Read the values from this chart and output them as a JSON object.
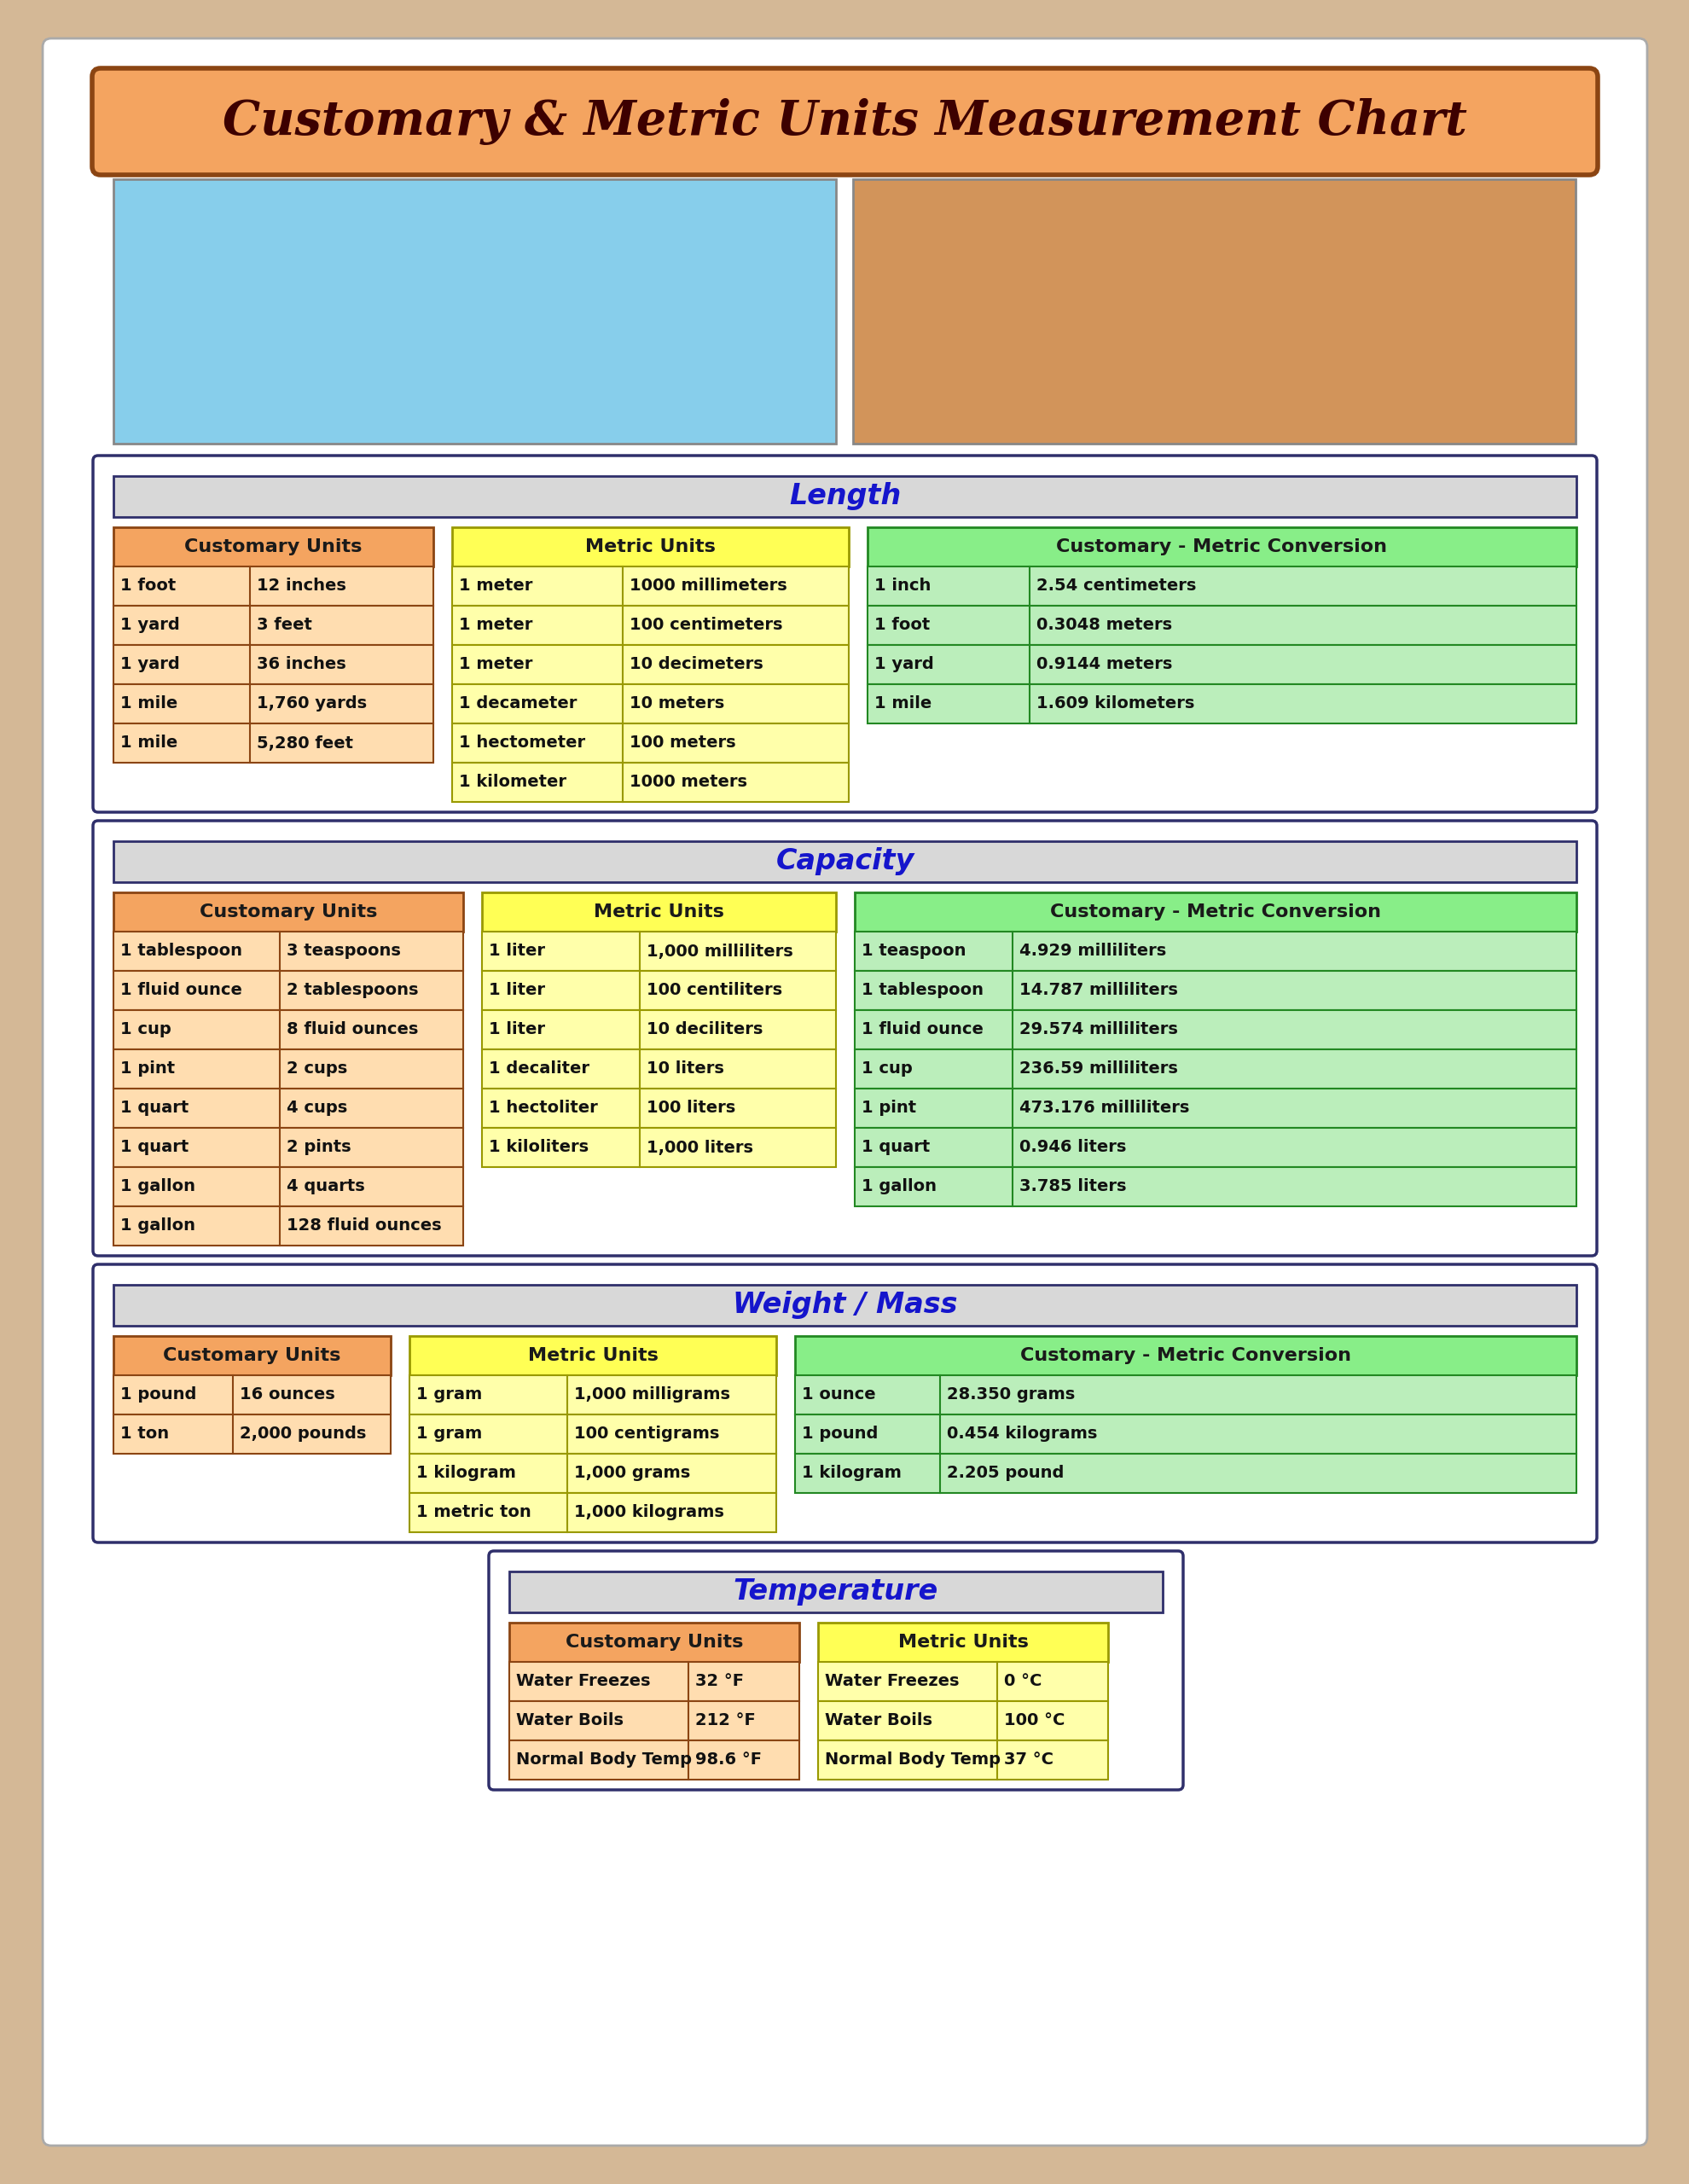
{
  "title": "Customary & Metric Units Measurement Chart",
  "bg_color": "#D4B896",
  "page_bg": "#FFFFFF",
  "title_box_color": "#F4A460",
  "title_border_color": "#8B4513",
  "title_text_color": "#3D0000",
  "section_header_bg": "#D8D8D8",
  "section_header_border": "#2F2F6B",
  "section_text_color": "#1515CC",
  "customary_header_bg": "#F4A460",
  "customary_header_border": "#8B4513",
  "metric_header_bg": "#FFFF55",
  "metric_header_border": "#999900",
  "conversion_header_bg": "#88EE88",
  "conversion_header_border": "#228822",
  "customary_row_bg": "#FFDDB0",
  "metric_row_bg": "#FFFFAA",
  "conversion_row_bg": "#BBEEBB",
  "main_border_color": "#2F2F6B",
  "length_section": "Length",
  "length_customary_header": "Customary Units",
  "length_metric_header": "Metric Units",
  "length_conversion_header": "Customary - Metric Conversion",
  "length_customary": [
    [
      "1 foot",
      "12 inches"
    ],
    [
      "1 yard",
      "3 feet"
    ],
    [
      "1 yard",
      "36 inches"
    ],
    [
      "1 mile",
      "1,760 yards"
    ],
    [
      "1 mile",
      "5,280 feet"
    ]
  ],
  "length_metric": [
    [
      "1 meter",
      "1000 millimeters"
    ],
    [
      "1 meter",
      "100 centimeters"
    ],
    [
      "1 meter",
      "10 decimeters"
    ],
    [
      "1 decameter",
      "10 meters"
    ],
    [
      "1 hectometer",
      "100 meters"
    ],
    [
      "1 kilometer",
      "1000 meters"
    ]
  ],
  "length_conversion": [
    [
      "1 inch",
      "2.54 centimeters"
    ],
    [
      "1 foot",
      "0.3048 meters"
    ],
    [
      "1 yard",
      "0.9144 meters"
    ],
    [
      "1 mile",
      "1.609 kilometers"
    ]
  ],
  "capacity_section": "Capacity",
  "capacity_customary_header": "Customary Units",
  "capacity_metric_header": "Metric Units",
  "capacity_conversion_header": "Customary - Metric Conversion",
  "capacity_customary": [
    [
      "1 tablespoon",
      "3 teaspoons"
    ],
    [
      "1 fluid ounce",
      "2 tablespoons"
    ],
    [
      "1 cup",
      "8 fluid ounces"
    ],
    [
      "1 pint",
      "2 cups"
    ],
    [
      "1 quart",
      "4 cups"
    ],
    [
      "1 quart",
      "2 pints"
    ],
    [
      "1 gallon",
      "4 quarts"
    ],
    [
      "1 gallon",
      "128 fluid ounces"
    ]
  ],
  "capacity_metric": [
    [
      "1 liter",
      "1,000 milliliters"
    ],
    [
      "1 liter",
      "100 centiliters"
    ],
    [
      "1 liter",
      "10 deciliters"
    ],
    [
      "1 decaliter",
      "10 liters"
    ],
    [
      "1 hectoliter",
      "100 liters"
    ],
    [
      "1 kiloliters",
      "1,000 liters"
    ]
  ],
  "capacity_conversion": [
    [
      "1 teaspoon",
      "4.929 milliliters"
    ],
    [
      "1 tablespoon",
      "14.787 milliliters"
    ],
    [
      "1 fluid ounce",
      "29.574 milliliters"
    ],
    [
      "1 cup",
      "236.59 milliliters"
    ],
    [
      "1 pint",
      "473.176 milliliters"
    ],
    [
      "1 quart",
      "0.946 liters"
    ],
    [
      "1 gallon",
      "3.785 liters"
    ]
  ],
  "weight_section": "Weight / Mass",
  "weight_customary_header": "Customary Units",
  "weight_metric_header": "Metric Units",
  "weight_conversion_header": "Customary - Metric Conversion",
  "weight_customary": [
    [
      "1 pound",
      "16 ounces"
    ],
    [
      "1 ton",
      "2,000 pounds"
    ]
  ],
  "weight_metric": [
    [
      "1 gram",
      "1,000 milligrams"
    ],
    [
      "1 gram",
      "100 centigrams"
    ],
    [
      "1 kilogram",
      "1,000 grams"
    ],
    [
      "1 metric ton",
      "1,000 kilograms"
    ]
  ],
  "weight_conversion": [
    [
      "1 ounce",
      "28.350 grams"
    ],
    [
      "1 pound",
      "0.454 kilograms"
    ],
    [
      "1 kilogram",
      "2.205 pound"
    ]
  ],
  "temp_section": "Temperature",
  "temp_customary_header": "Customary Units",
  "temp_metric_header": "Metric Units",
  "temp_customary": [
    [
      "Water Freezes",
      "32 °F"
    ],
    [
      "Water Boils",
      "212 °F"
    ],
    [
      "Normal Body Temp",
      "98.6 °F"
    ]
  ],
  "temp_metric": [
    [
      "Water Freezes",
      "0 °C"
    ],
    [
      "Water Boils",
      "100 °C"
    ],
    [
      "Normal Body Temp",
      "37 °C"
    ]
  ],
  "left_img_color": "#87CEEB",
  "right_img_color": "#D2945A"
}
